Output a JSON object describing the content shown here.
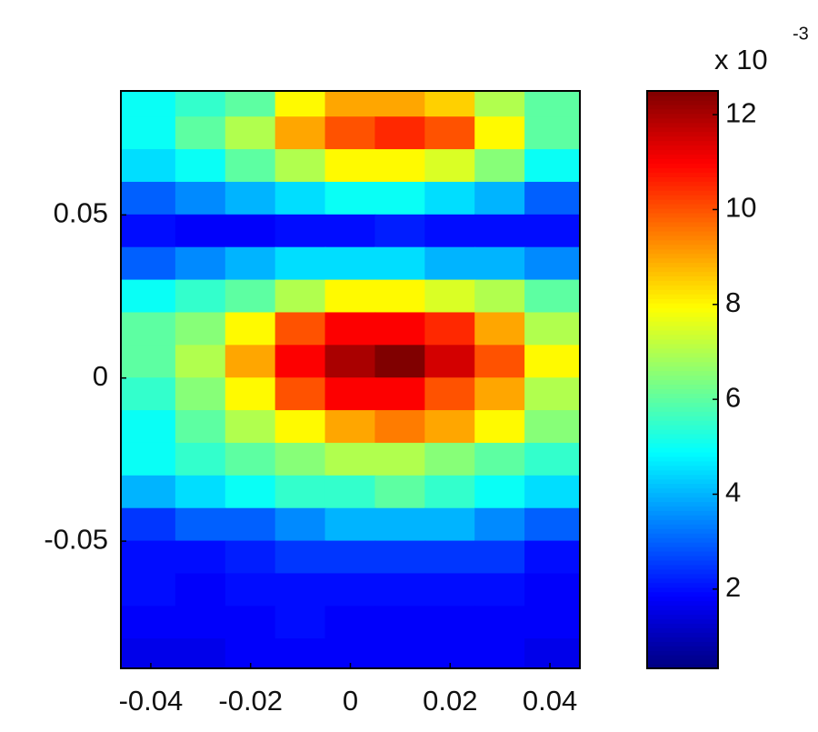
{
  "chart_data": {
    "type": "heatmap",
    "x": [
      -0.04,
      -0.03,
      -0.02,
      -0.01,
      0,
      0.01,
      0.02,
      0.03,
      0.04
    ],
    "y": [
      0.085,
      0.075,
      0.065,
      0.055,
      0.045,
      0.035,
      0.025,
      0.015,
      0.005,
      -0.005,
      -0.015,
      -0.025,
      -0.035,
      -0.045,
      -0.055,
      -0.065,
      -0.075,
      -0.085
    ],
    "z": [
      [
        5,
        5.5,
        6,
        8,
        9,
        9,
        8.5,
        7,
        6
      ],
      [
        5,
        6,
        7,
        9,
        10,
        10.5,
        10,
        8,
        6
      ],
      [
        4.5,
        5,
        6,
        7,
        8,
        8,
        7.5,
        6.5,
        5
      ],
      [
        3,
        3.5,
        4,
        4.5,
        5,
        5,
        4.5,
        4,
        3
      ],
      [
        2,
        1.8,
        1.8,
        2,
        2,
        2.2,
        2,
        2,
        2
      ],
      [
        3,
        3.5,
        4,
        4.5,
        4.5,
        4.5,
        4,
        4,
        3.5
      ],
      [
        5,
        5.5,
        6,
        7,
        8,
        8,
        7.5,
        7,
        6
      ],
      [
        6,
        6.5,
        8,
        10,
        11,
        11,
        10.5,
        9,
        7
      ],
      [
        6,
        7,
        9,
        11,
        12,
        12.5,
        11.5,
        10,
        8
      ],
      [
        5.5,
        6.5,
        8,
        10,
        11,
        11,
        10,
        9,
        7
      ],
      [
        5,
        6,
        7,
        8,
        9,
        9.5,
        9,
        8,
        6.5
      ],
      [
        5,
        5.5,
        6,
        6.5,
        7,
        7,
        6.5,
        6,
        5.5
      ],
      [
        4,
        4.5,
        5,
        5.5,
        5.5,
        6,
        5.5,
        5,
        4.5
      ],
      [
        2.5,
        3,
        3,
        3.5,
        4,
        4,
        4,
        3.5,
        3
      ],
      [
        2,
        2,
        2.2,
        2.5,
        2.5,
        2.5,
        2.5,
        2.5,
        2
      ],
      [
        2,
        1.8,
        2,
        2,
        2,
        2,
        2,
        2,
        1.8
      ],
      [
        1.8,
        1.8,
        1.8,
        2,
        1.8,
        1.8,
        1.8,
        1.8,
        1.8
      ],
      [
        1.6,
        1.6,
        1.8,
        1.8,
        1.8,
        1.8,
        1.8,
        1.8,
        1.6
      ]
    ],
    "xlim": [
      -0.046,
      0.046
    ],
    "ylim": [
      -0.089,
      0.088
    ],
    "xticks": [
      -0.04,
      -0.02,
      0,
      0.02,
      0.04
    ],
    "yticks": [
      -0.05,
      0,
      0.05
    ],
    "colormap": "jet",
    "zlim": [
      0.33,
      12.5
    ],
    "colorbar_ticks": [
      2,
      4,
      6,
      8,
      10,
      12
    ],
    "colorbar_label": "x 10",
    "colorbar_exponent": "-3"
  }
}
